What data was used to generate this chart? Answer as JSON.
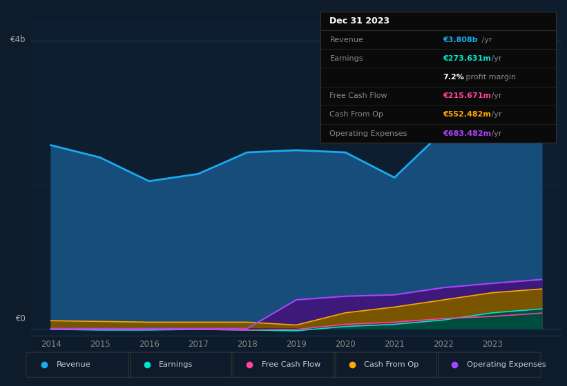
{
  "bg_color": "#0d1b2a",
  "plot_bg_color": "#0d1e30",
  "grid_color": "#1e3a50",
  "years": [
    2014,
    2015,
    2016,
    2017,
    2018,
    2019,
    2020,
    2021,
    2022,
    2023,
    2024
  ],
  "revenue": [
    2.55,
    2.38,
    2.05,
    2.15,
    2.45,
    2.48,
    2.45,
    2.1,
    2.75,
    3.7,
    3.808
  ],
  "earnings": [
    -0.01,
    -0.02,
    -0.02,
    -0.01,
    -0.02,
    -0.03,
    0.03,
    0.06,
    0.12,
    0.22,
    0.274
  ],
  "free_cash_flow": [
    -0.01,
    -0.01,
    -0.01,
    -0.01,
    -0.02,
    -0.01,
    0.06,
    0.09,
    0.14,
    0.17,
    0.216
  ],
  "cash_from_op": [
    0.11,
    0.1,
    0.09,
    0.09,
    0.09,
    0.05,
    0.22,
    0.3,
    0.4,
    0.5,
    0.552
  ],
  "operating_expenses": [
    0.0,
    0.0,
    0.0,
    0.0,
    0.0,
    0.4,
    0.45,
    0.47,
    0.57,
    0.63,
    0.683
  ],
  "revenue_color": "#1aabf0",
  "earnings_color": "#00e5cc",
  "free_cash_flow_color": "#ff4499",
  "cash_from_op_color": "#ffaa00",
  "operating_expenses_color": "#aa44ff",
  "revenue_fill": "#164d7a",
  "earnings_fill": "#004d40",
  "free_cash_flow_fill": "#7a1a44",
  "cash_from_op_fill": "#7a5500",
  "operating_expenses_fill": "#3d1a7a",
  "ylim_min": -0.1,
  "ylim_max": 4.3,
  "y4b_label": "€4b",
  "y0_label": "€0",
  "x_ticks": [
    2014,
    2015,
    2016,
    2017,
    2018,
    2019,
    2020,
    2021,
    2022,
    2023
  ],
  "legend_labels": [
    "Revenue",
    "Earnings",
    "Free Cash Flow",
    "Cash From Op",
    "Operating Expenses"
  ],
  "table_title": "Dec 31 2023",
  "table_rows": [
    {
      "label": "Revenue",
      "value": "€3.808b",
      "suffix": " /yr",
      "value_color": "#1aabf0",
      "label_color": "#888888"
    },
    {
      "label": "Earnings",
      "value": "€273.631m",
      "suffix": " /yr",
      "value_color": "#00e5cc",
      "label_color": "#888888"
    },
    {
      "label": "",
      "value": "7.2%",
      "suffix": " profit margin",
      "value_color": "white",
      "label_color": "#888888"
    },
    {
      "label": "Free Cash Flow",
      "value": "€215.671m",
      "suffix": " /yr",
      "value_color": "#ff4499",
      "label_color": "#888888"
    },
    {
      "label": "Cash From Op",
      "value": "€552.482m",
      "suffix": " /yr",
      "value_color": "#ffaa00",
      "label_color": "#888888"
    },
    {
      "label": "Operating Expenses",
      "value": "€683.482m",
      "suffix": " /yr",
      "value_color": "#aa44ff",
      "label_color": "#888888"
    }
  ]
}
